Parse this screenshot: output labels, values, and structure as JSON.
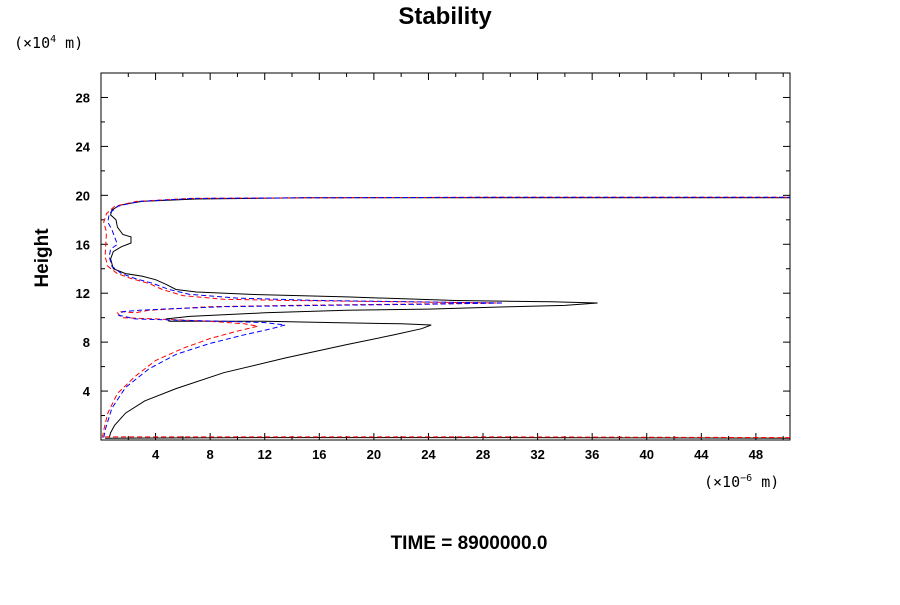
{
  "chart_data": {
    "type": "line",
    "title": "Stability",
    "ylabel": "Height",
    "y_unit": {
      "base": "(×10",
      "exp": "4",
      "rest": " m)"
    },
    "x_unit": {
      "base": "(×10",
      "exp": "−6",
      "rest": " m)"
    },
    "footer": "TIME = 8900000.0",
    "xlim": [
      0,
      50.5
    ],
    "ylim": [
      0,
      30
    ],
    "x_ticks": [
      4,
      8,
      12,
      16,
      20,
      24,
      28,
      32,
      36,
      40,
      44,
      48
    ],
    "y_ticks": [
      4,
      8,
      12,
      16,
      20,
      24,
      28
    ],
    "grid": false,
    "series": [
      {
        "color": "#000000",
        "style": "solid",
        "points": [
          [
            0.6,
            0.2
          ],
          [
            0.7,
            0.6
          ],
          [
            1.0,
            1.2
          ],
          [
            1.8,
            2.2
          ],
          [
            3.2,
            3.2
          ],
          [
            5.5,
            4.2
          ],
          [
            9.0,
            5.5
          ],
          [
            13.5,
            6.7
          ],
          [
            18.0,
            7.8
          ],
          [
            21.5,
            8.6
          ],
          [
            23.5,
            9.1
          ],
          [
            24.2,
            9.4
          ],
          [
            22.0,
            9.5
          ],
          [
            17.0,
            9.6
          ],
          [
            12.0,
            9.7
          ],
          [
            8.0,
            9.7
          ],
          [
            5.0,
            9.7
          ],
          [
            4.8,
            9.9
          ],
          [
            6.5,
            10.1
          ],
          [
            12.0,
            10.4
          ],
          [
            18.0,
            10.6
          ],
          [
            24.0,
            10.7
          ],
          [
            30.0,
            10.9
          ],
          [
            34.0,
            11.0
          ],
          [
            36.4,
            11.2
          ],
          [
            33.0,
            11.3
          ],
          [
            26.0,
            11.4
          ],
          [
            18.0,
            11.7
          ],
          [
            11.0,
            11.9
          ],
          [
            7.0,
            12.1
          ],
          [
            5.5,
            12.3
          ],
          [
            4.8,
            12.7
          ],
          [
            4.0,
            13.1
          ],
          [
            3.0,
            13.4
          ],
          [
            1.8,
            13.6
          ],
          [
            0.9,
            14.0
          ],
          [
            0.7,
            14.8
          ],
          [
            0.9,
            15.4
          ],
          [
            1.5,
            15.8
          ],
          [
            2.2,
            16.1
          ],
          [
            2.2,
            16.6
          ],
          [
            1.6,
            16.8
          ],
          [
            1.2,
            17.4
          ],
          [
            1.1,
            18.0
          ],
          [
            0.7,
            18.4
          ],
          [
            0.8,
            18.8
          ],
          [
            1.4,
            19.2
          ],
          [
            3.0,
            19.5
          ],
          [
            7.0,
            19.7
          ],
          [
            15.0,
            19.8
          ],
          [
            30.0,
            19.8
          ],
          [
            50.5,
            19.8
          ]
        ]
      },
      {
        "color": "#ff0000",
        "style": "dashed",
        "points": [
          [
            0.1,
            0.2
          ],
          [
            0.2,
            0.8
          ],
          [
            0.5,
            2.2
          ],
          [
            1.2,
            3.8
          ],
          [
            2.5,
            5.2
          ],
          [
            4.0,
            6.5
          ],
          [
            6.0,
            7.5
          ],
          [
            8.0,
            8.3
          ],
          [
            10.0,
            8.9
          ],
          [
            11.5,
            9.3
          ],
          [
            10.5,
            9.5
          ],
          [
            8.0,
            9.7
          ],
          [
            4.0,
            9.9
          ],
          [
            1.5,
            10.0
          ],
          [
            1.2,
            10.4
          ],
          [
            1.5,
            10.5
          ],
          [
            2.5,
            10.4
          ],
          [
            3.5,
            10.6
          ],
          [
            8.0,
            10.9
          ],
          [
            14.0,
            11.0
          ],
          [
            22.0,
            11.1
          ],
          [
            29.0,
            11.2
          ],
          [
            22.0,
            11.3
          ],
          [
            14.0,
            11.4
          ],
          [
            9.0,
            11.5
          ],
          [
            6.0,
            11.8
          ],
          [
            4.5,
            12.3
          ],
          [
            3.5,
            12.8
          ],
          [
            2.2,
            13.2
          ],
          [
            1.2,
            13.6
          ],
          [
            0.5,
            14.2
          ],
          [
            0.3,
            15.0
          ],
          [
            0.35,
            16.0
          ],
          [
            0.4,
            17.0
          ],
          [
            0.2,
            17.8
          ],
          [
            0.4,
            18.5
          ],
          [
            1.0,
            19.1
          ],
          [
            2.6,
            19.5
          ],
          [
            6.5,
            19.75
          ],
          [
            15.0,
            19.8
          ],
          [
            30.0,
            19.85
          ],
          [
            50.5,
            19.85
          ]
        ]
      },
      {
        "color": "#0000ff",
        "style": "dashed",
        "points": [
          [
            0.2,
            0.2
          ],
          [
            0.35,
            1.0
          ],
          [
            0.8,
            2.6
          ],
          [
            1.8,
            4.3
          ],
          [
            3.5,
            5.8
          ],
          [
            5.5,
            7.0
          ],
          [
            8.0,
            7.9
          ],
          [
            10.5,
            8.6
          ],
          [
            12.5,
            9.1
          ],
          [
            13.5,
            9.4
          ],
          [
            12.0,
            9.6
          ],
          [
            9.0,
            9.7
          ],
          [
            5.5,
            9.8
          ],
          [
            2.5,
            9.9
          ],
          [
            1.3,
            10.2
          ],
          [
            1.6,
            10.5
          ],
          [
            2.8,
            10.6
          ],
          [
            4.5,
            10.7
          ],
          [
            9.0,
            10.9
          ],
          [
            16.0,
            11.0
          ],
          [
            24.0,
            11.1
          ],
          [
            29.5,
            11.2
          ],
          [
            23.0,
            11.3
          ],
          [
            16.0,
            11.4
          ],
          [
            10.0,
            11.6
          ],
          [
            6.5,
            11.9
          ],
          [
            5.0,
            12.3
          ],
          [
            3.8,
            12.8
          ],
          [
            2.5,
            13.2
          ],
          [
            1.5,
            13.6
          ],
          [
            0.8,
            14.2
          ],
          [
            0.6,
            15.0
          ],
          [
            0.7,
            15.6
          ],
          [
            1.2,
            16.0
          ],
          [
            1.0,
            16.6
          ],
          [
            0.8,
            17.2
          ],
          [
            0.5,
            17.8
          ],
          [
            0.6,
            18.5
          ],
          [
            1.2,
            19.1
          ],
          [
            2.8,
            19.5
          ],
          [
            6.8,
            19.75
          ],
          [
            15.0,
            19.8
          ],
          [
            30.0,
            19.85
          ],
          [
            50.5,
            19.85
          ]
        ]
      },
      {
        "color": "#000000",
        "style": "solid",
        "points": [
          [
            0.3,
            0.15
          ],
          [
            12.0,
            0.2
          ],
          [
            30.0,
            0.2
          ],
          [
            50.5,
            0.15
          ]
        ]
      },
      {
        "color": "#ff0000",
        "style": "dashed",
        "points": [
          [
            0.3,
            0.25
          ],
          [
            10.0,
            0.25
          ],
          [
            30.0,
            0.25
          ],
          [
            50.5,
            0.2
          ]
        ]
      }
    ]
  }
}
